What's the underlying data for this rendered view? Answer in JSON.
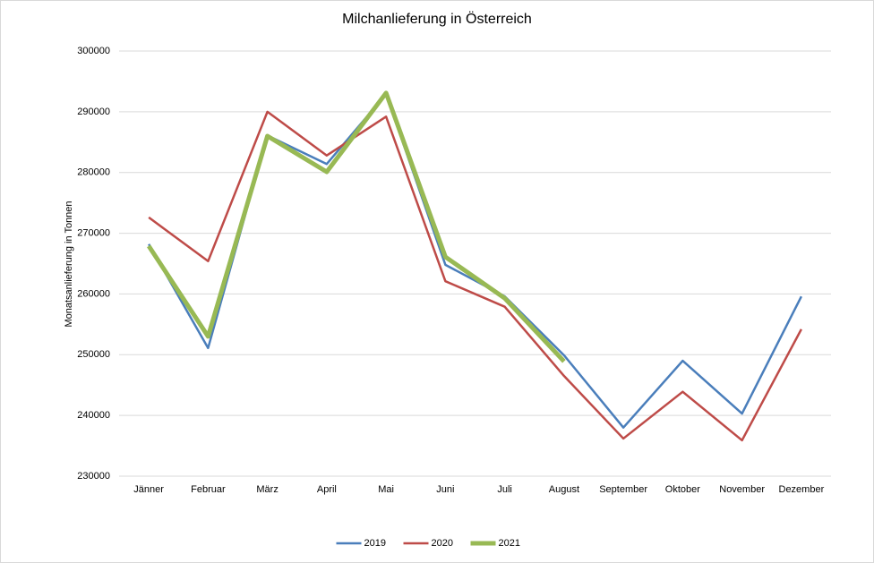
{
  "chart_data": {
    "type": "line",
    "title": "Milchanlieferung in Österreich",
    "y_label": "Monatsanlieferung in Tonnen",
    "categories": [
      "Jänner",
      "Februar",
      "März",
      "April",
      "Mai",
      "Juni",
      "Juli",
      "August",
      "September",
      "Oktober",
      "November",
      "Dezember"
    ],
    "series": [
      {
        "name": "2019",
        "color": "#4a7ebb",
        "width": 2.5,
        "values": [
          268200,
          251100,
          286100,
          281400,
          292900,
          264800,
          259600,
          249900,
          238000,
          249000,
          240300,
          259600
        ]
      },
      {
        "name": "2020",
        "color": "#be4b48",
        "width": 2.5,
        "values": [
          272600,
          265400,
          290000,
          282800,
          289200,
          262100,
          257900,
          246500,
          236200,
          243900,
          235900,
          254200
        ]
      },
      {
        "name": "2021",
        "color": "#98b954",
        "width": 5,
        "values": [
          267900,
          253000,
          286000,
          280100,
          293100,
          266100,
          259300,
          248900,
          null,
          null,
          null,
          null
        ]
      }
    ],
    "ylim": [
      230000,
      300000
    ],
    "yticks": [
      230000,
      240000,
      250000,
      260000,
      270000,
      280000,
      290000,
      300000
    ],
    "grid": true,
    "legend": "bottom"
  }
}
